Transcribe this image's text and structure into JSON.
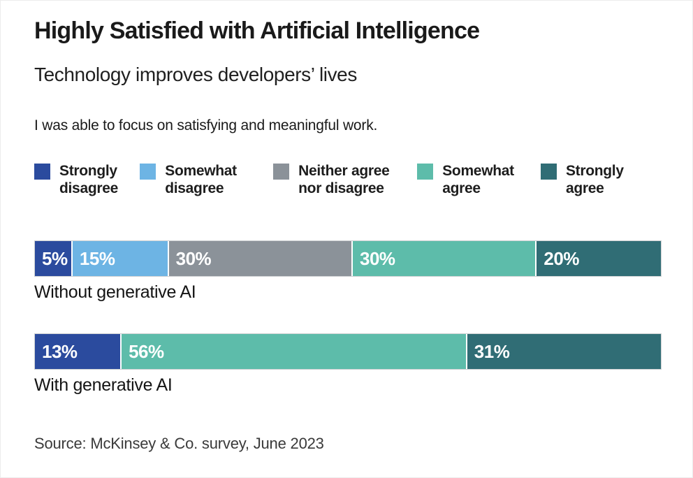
{
  "chart_data": {
    "type": "bar",
    "orientation": "horizontal-stacked",
    "title": "Highly Satisfied with Artificial Intelligence",
    "subtitle": "Technology improves developers’ lives",
    "question": "I was able to focus on satisfying and meaningful work.",
    "unit": "%",
    "xlim": [
      0,
      100
    ],
    "grid": false,
    "legend_position": "top",
    "legend": [
      {
        "label": "Strongly disagree",
        "color": "#2b4b9e"
      },
      {
        "label": "Somewhat disagree",
        "color": "#6db4e4"
      },
      {
        "label": "Neither agree nor disagree",
        "color": "#8b9299"
      },
      {
        "label": "Somewhat agree",
        "color": "#5dbcaa"
      },
      {
        "label": "Strongly agree",
        "color": "#306d75"
      }
    ],
    "bars": [
      {
        "label": "Without generative AI",
        "segments": [
          {
            "category": "Strongly disagree",
            "value": 5,
            "display": "5%",
            "color": "#2b4b9e"
          },
          {
            "category": "Somewhat disagree",
            "value": 15,
            "display": "15%",
            "color": "#6db4e4"
          },
          {
            "category": "Neither agree nor disagree",
            "value": 30,
            "display": "30%",
            "color": "#8b9299"
          },
          {
            "category": "Somewhat agree",
            "value": 30,
            "display": "30%",
            "color": "#5dbcaa"
          },
          {
            "category": "Strongly agree",
            "value": 20,
            "display": "20%",
            "color": "#306d75"
          }
        ]
      },
      {
        "label": "With generative AI",
        "segments": [
          {
            "category": "Strongly disagree",
            "value": 13,
            "display": "13%",
            "color": "#2b4b9e"
          },
          {
            "category": "Somewhat agree",
            "value": 56,
            "display": "56%",
            "color": "#5dbcaa"
          },
          {
            "category": "Strongly agree",
            "value": 31,
            "display": "31%",
            "color": "#306d75"
          }
        ]
      }
    ],
    "source": "Source: McKinsey & Co. survey, June 2023"
  }
}
